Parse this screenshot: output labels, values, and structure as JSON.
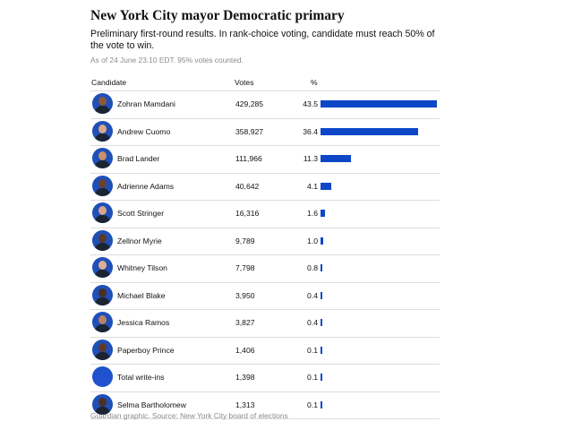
{
  "header": {
    "title": "New York City mayor Democratic primary",
    "subtitle": "Preliminary first-round results. In rank-choice voting, candidate must reach 50% of the vote to win.",
    "timestamp": "As of 24 June 23.10 EDT. 95% votes counted."
  },
  "table": {
    "columns": [
      "Candidate",
      "Votes",
      "%"
    ],
    "rows": [
      {
        "name": "Zohran Mamdani",
        "votes": "429,285",
        "pct": "43.5",
        "skin": "#8a5a3b"
      },
      {
        "name": "Andrew Cuomo",
        "votes": "358,927",
        "pct": "36.4",
        "skin": "#d9a88a"
      },
      {
        "name": "Brad Lander",
        "votes": "111,966",
        "pct": "11.3",
        "skin": "#c9906e"
      },
      {
        "name": "Adrienne Adams",
        "votes": "40,642",
        "pct": "4.1",
        "skin": "#6b4230"
      },
      {
        "name": "Scott Stringer",
        "votes": "16,316",
        "pct": "1.6",
        "skin": "#d8a58a"
      },
      {
        "name": "Zellnor Myrie",
        "votes": "9,789",
        "pct": "1.0",
        "skin": "#5a3a2a"
      },
      {
        "name": "Whitney Tilson",
        "votes": "7,798",
        "pct": "0.8",
        "skin": "#dcae95"
      },
      {
        "name": "Michael Blake",
        "votes": "3,950",
        "pct": "0.4",
        "skin": "#4a3024"
      },
      {
        "name": "Jessica Ramos",
        "votes": "3,827",
        "pct": "0.4",
        "skin": "#b98266"
      },
      {
        "name": "Paperboy Prince",
        "votes": "1,406",
        "pct": "0.1",
        "skin": "#5e3b2a"
      },
      {
        "name": "Total write-ins",
        "votes": "1,398",
        "pct": "0.1",
        "skin": ""
      },
      {
        "name": "Selma Bartholomew",
        "votes": "1,313",
        "pct": "0.1",
        "skin": "#4c3125"
      }
    ]
  },
  "colors": {
    "bar": "#0d47c8",
    "avatar_bg": "#1f4fb8"
  },
  "footer": {
    "source": "Guardian graphic. Source: New York City board of elections"
  }
}
